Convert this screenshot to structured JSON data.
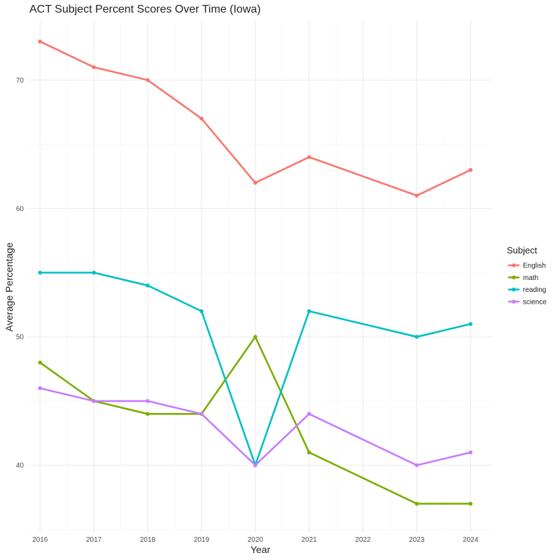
{
  "chart_data": {
    "type": "line",
    "title": "ACT Subject Percent Scores Over Time (Iowa)",
    "xlabel": "Year",
    "ylabel": "Average Percentage",
    "x_ticks": [
      2016,
      2017,
      2018,
      2019,
      2020,
      2021,
      2022,
      2023,
      2024
    ],
    "y_ticks": [
      40,
      50,
      60,
      70
    ],
    "xlim": [
      2015.75,
      2024.4
    ],
    "ylim": [
      34.8,
      74.6
    ],
    "grid": true,
    "legend_title": "Subject",
    "legend_position": "right",
    "series": [
      {
        "name": "English",
        "color": "#F8766D",
        "x": [
          2016,
          2017,
          2018,
          2019,
          2020,
          2021,
          2023,
          2024
        ],
        "values": [
          73,
          71,
          70,
          67,
          62,
          64,
          61,
          63
        ]
      },
      {
        "name": "math",
        "color": "#7CAE00",
        "x": [
          2016,
          2017,
          2018,
          2019,
          2020,
          2021,
          2023,
          2024
        ],
        "values": [
          48,
          45,
          44,
          44,
          50,
          41,
          37,
          37
        ]
      },
      {
        "name": "reading",
        "color": "#00BFC4",
        "x": [
          2016,
          2017,
          2018,
          2019,
          2020,
          2021,
          2023,
          2024
        ],
        "values": [
          55,
          55,
          54,
          52,
          40,
          52,
          50,
          51
        ]
      },
      {
        "name": "science",
        "color": "#C77CFF",
        "x": [
          2016,
          2017,
          2018,
          2019,
          2020,
          2021,
          2023,
          2024
        ],
        "values": [
          46,
          45,
          45,
          44,
          40,
          44,
          40,
          41
        ]
      }
    ]
  }
}
